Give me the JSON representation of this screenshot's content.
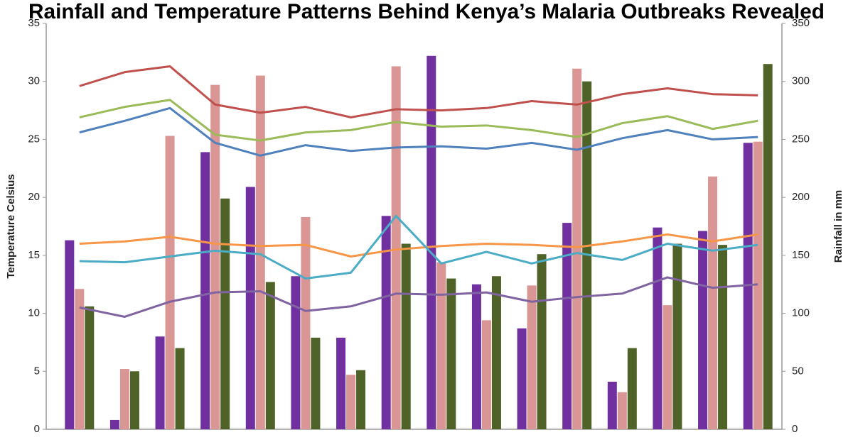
{
  "chart_data": {
    "type": "combo",
    "title": "Rainfall and Temperature Patterns Behind Kenya’s Malaria Outbreaks Revealed",
    "y_label": "Temperature Celsius",
    "y2_label": "Rainfall in mm",
    "categories": [
      null,
      null,
      null,
      null,
      null,
      null,
      null,
      null,
      null,
      null,
      null,
      null,
      null,
      null,
      null,
      null
    ],
    "ylim": [
      0,
      35
    ],
    "yticks": [
      0,
      5,
      10,
      15,
      20,
      25,
      30,
      35
    ],
    "y2lim": [
      0,
      350
    ],
    "y2ticks": [
      0,
      50,
      100,
      150,
      200,
      250,
      300,
      350
    ],
    "series": [
      {
        "type": "bar",
        "axis": "y2",
        "color": "#7030a0",
        "values": [
          163,
          8,
          80,
          239,
          209,
          132,
          79,
          184,
          322,
          125,
          87,
          178,
          41,
          174,
          171,
          247
        ]
      },
      {
        "type": "bar",
        "axis": "y2",
        "color": "#d99694",
        "values": [
          121,
          52,
          253,
          297,
          305,
          183,
          47,
          313,
          144,
          94,
          124,
          311,
          32,
          107,
          218,
          248
        ]
      },
      {
        "type": "bar",
        "axis": "y2",
        "color": "#4f6228",
        "values": [
          106,
          50,
          70,
          199,
          127,
          79,
          51,
          160,
          130,
          132,
          151,
          300,
          70,
          160,
          159,
          315
        ]
      },
      {
        "type": "line",
        "color": "#c0504d",
        "values": [
          29.6,
          30.8,
          31.3,
          28.0,
          27.3,
          27.8,
          26.9,
          27.6,
          27.5,
          27.7,
          28.3,
          28.0,
          28.9,
          29.4,
          28.9,
          28.8
        ]
      },
      {
        "type": "line",
        "color": "#9bbb59",
        "values": [
          26.9,
          27.8,
          28.4,
          25.4,
          24.9,
          25.6,
          25.8,
          26.5,
          26.1,
          26.2,
          25.8,
          25.2,
          26.4,
          27.0,
          25.9,
          26.6
        ]
      },
      {
        "type": "line",
        "color": "#4f81bd",
        "values": [
          25.6,
          26.6,
          27.7,
          24.7,
          23.6,
          24.5,
          24.0,
          24.3,
          24.4,
          24.2,
          24.7,
          24.1,
          25.1,
          25.8,
          25.0,
          25.2
        ]
      },
      {
        "type": "line",
        "color": "#f79646",
        "values": [
          16.0,
          16.2,
          16.6,
          16.0,
          15.8,
          15.9,
          14.9,
          15.5,
          15.8,
          16.0,
          15.9,
          15.7,
          16.2,
          16.8,
          16.2,
          16.8
        ]
      },
      {
        "type": "line",
        "color": "#4bacc6",
        "values": [
          14.5,
          14.4,
          14.9,
          15.4,
          15.1,
          13.0,
          13.5,
          18.4,
          14.3,
          15.3,
          14.3,
          15.2,
          14.6,
          16.0,
          15.4,
          15.9
        ]
      },
      {
        "type": "line",
        "color": "#8064a2",
        "values": [
          10.5,
          9.7,
          11.0,
          11.8,
          11.9,
          10.2,
          10.6,
          11.7,
          11.6,
          11.8,
          11.0,
          11.4,
          11.7,
          13.1,
          12.2,
          12.5
        ]
      }
    ]
  }
}
